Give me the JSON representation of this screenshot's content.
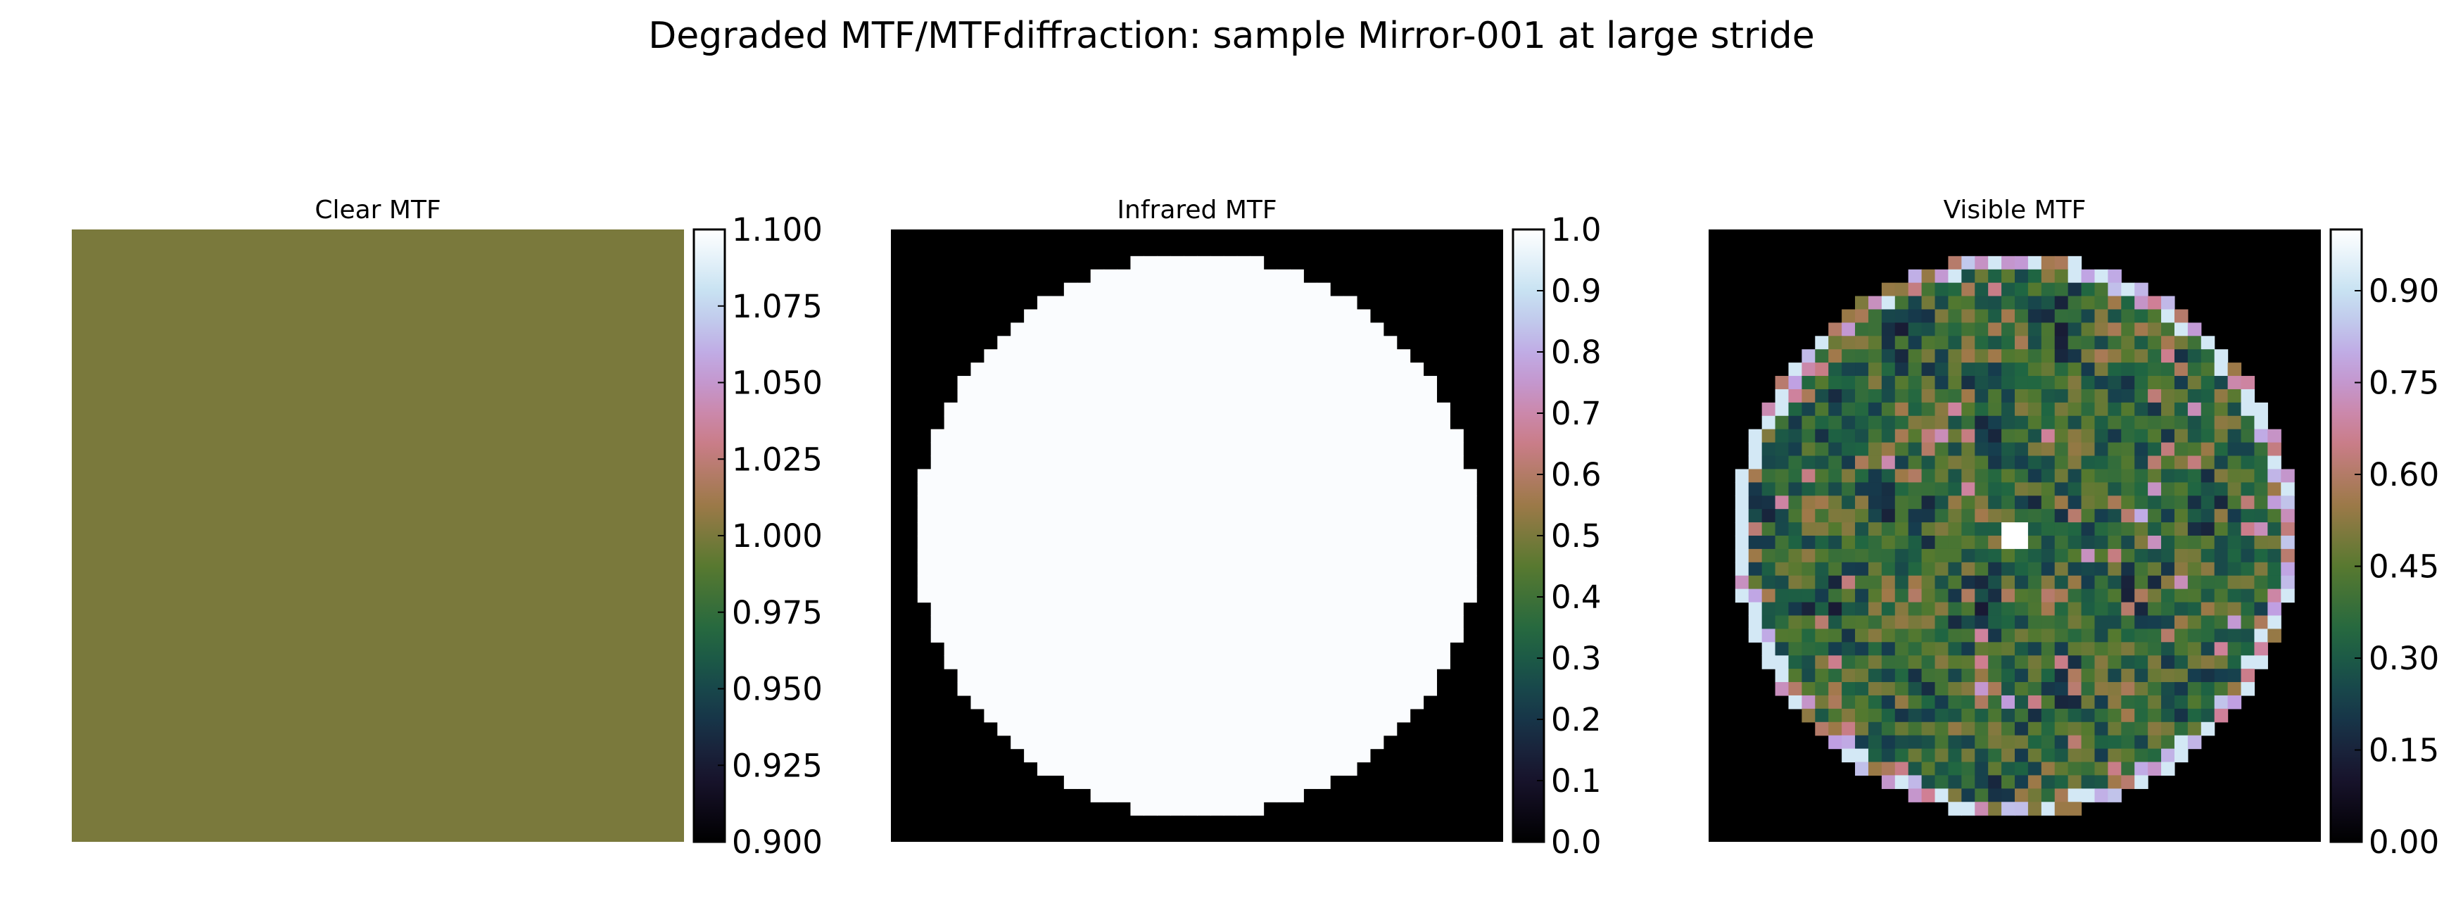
{
  "figure": {
    "title": "Degraded MTF/MTFdiffraction: sample Mirror-001 at large stride"
  },
  "colormap": {
    "name": "cubehelix",
    "stops": [
      "#000000",
      "#1a1530",
      "#163d4e",
      "#1f6642",
      "#54792f",
      "#a07949",
      "#d07e93",
      "#c09fe2",
      "#c2dff1",
      "#ffffff"
    ]
  },
  "chart_data": [
    {
      "type": "heatmap",
      "title": "Clear MTF",
      "fill": "uniform",
      "uniform_value": 1.0,
      "colorbar": {
        "range": [
          0.9,
          1.1
        ],
        "ticks": [
          0.9,
          0.925,
          0.95,
          0.975,
          1.0,
          1.025,
          1.05,
          1.075,
          1.1
        ],
        "tick_labels": [
          "0.900",
          "0.925",
          "0.950",
          "0.975",
          "1.000",
          "1.025",
          "1.050",
          "1.075",
          "1.100"
        ]
      }
    },
    {
      "type": "heatmap",
      "title": "Infrared MTF",
      "fill": "aperture",
      "inside_value": 0.99,
      "outside_value": 0.0,
      "colorbar": {
        "range": [
          0.0,
          1.0
        ],
        "ticks": [
          0.0,
          0.1,
          0.2,
          0.3,
          0.4,
          0.5,
          0.6,
          0.7,
          0.8,
          0.9,
          1.0
        ],
        "tick_labels": [
          "0.0",
          "0.1",
          "0.2",
          "0.3",
          "0.4",
          "0.5",
          "0.6",
          "0.7",
          "0.8",
          "0.9",
          "1.0"
        ]
      }
    },
    {
      "type": "heatmap",
      "title": "Visible MTF",
      "fill": "aperture-noisy",
      "inside_mean": 0.36,
      "center_value": 1.0,
      "rim_value": 0.92,
      "outside_value": 0.0,
      "colorbar": {
        "range": [
          0.0,
          1.0
        ],
        "ticks": [
          0.0,
          0.15,
          0.3,
          0.45,
          0.6,
          0.75,
          0.9
        ],
        "tick_labels": [
          "0.00",
          "0.15",
          "0.30",
          "0.45",
          "0.60",
          "0.75",
          "0.90"
        ]
      }
    }
  ]
}
